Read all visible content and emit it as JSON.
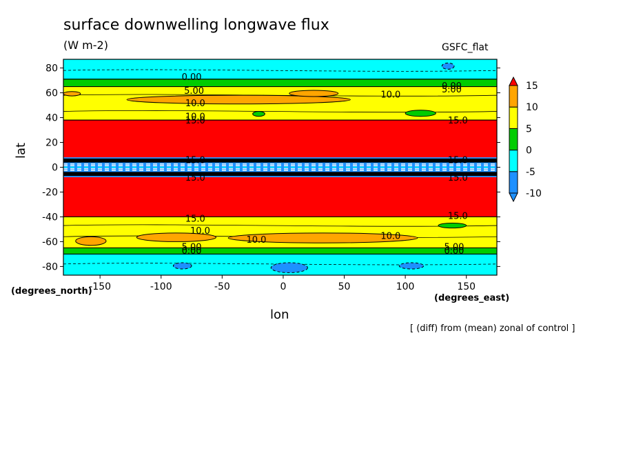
{
  "title": "surface downwelling longwave flux",
  "units": "(W m-2)",
  "run_name": "GSFC_flat",
  "footnote": "[ (diff) from (mean) zonal of control ]",
  "chart_data": {
    "type": "heatmap",
    "title": "surface downwelling longwave flux",
    "xlabel": "lon",
    "ylabel": "lat",
    "x_units_label": "(degrees_east)",
    "y_units_label": "(degrees_north)",
    "xlim": [
      -180,
      175
    ],
    "ylim": [
      -87,
      87
    ],
    "x_ticks": [
      -150,
      -100,
      -50,
      0,
      50,
      100,
      150
    ],
    "y_ticks": [
      -80,
      -60,
      -40,
      -20,
      0,
      20,
      40,
      60,
      80
    ],
    "colorbar": {
      "levels": [
        -10,
        -5,
        0,
        5,
        10,
        15
      ],
      "colors": [
        "#1e90ff",
        "#00ffff",
        "#00cc00",
        "#ffff00",
        "#ffa500",
        "#ff0000"
      ],
      "extends": "both"
    },
    "latitude_bands": [
      {
        "lat_min": -87,
        "lat_max": -70,
        "class": "-5 to 0"
      },
      {
        "lat_min": -70,
        "lat_max": -65,
        "class": "0 to 5"
      },
      {
        "lat_min": -65,
        "lat_max": -40,
        "class": "5 to 10"
      },
      {
        "lat_min": -40,
        "lat_max": -8,
        "class": ">15"
      },
      {
        "lat_min": -8,
        "lat_max": 8,
        "class": "-10 to -5"
      },
      {
        "lat_min": 8,
        "lat_max": 38,
        "class": ">15"
      },
      {
        "lat_min": 38,
        "lat_max": 65,
        "class": "5 to 10"
      },
      {
        "lat_min": 65,
        "lat_max": 71,
        "class": "0 to 5"
      },
      {
        "lat_min": 71,
        "lat_max": 87,
        "class": "-5 to 0"
      }
    ],
    "contour_labels": [
      "0.00",
      "5.00",
      "10.0",
      "15.0"
    ]
  }
}
